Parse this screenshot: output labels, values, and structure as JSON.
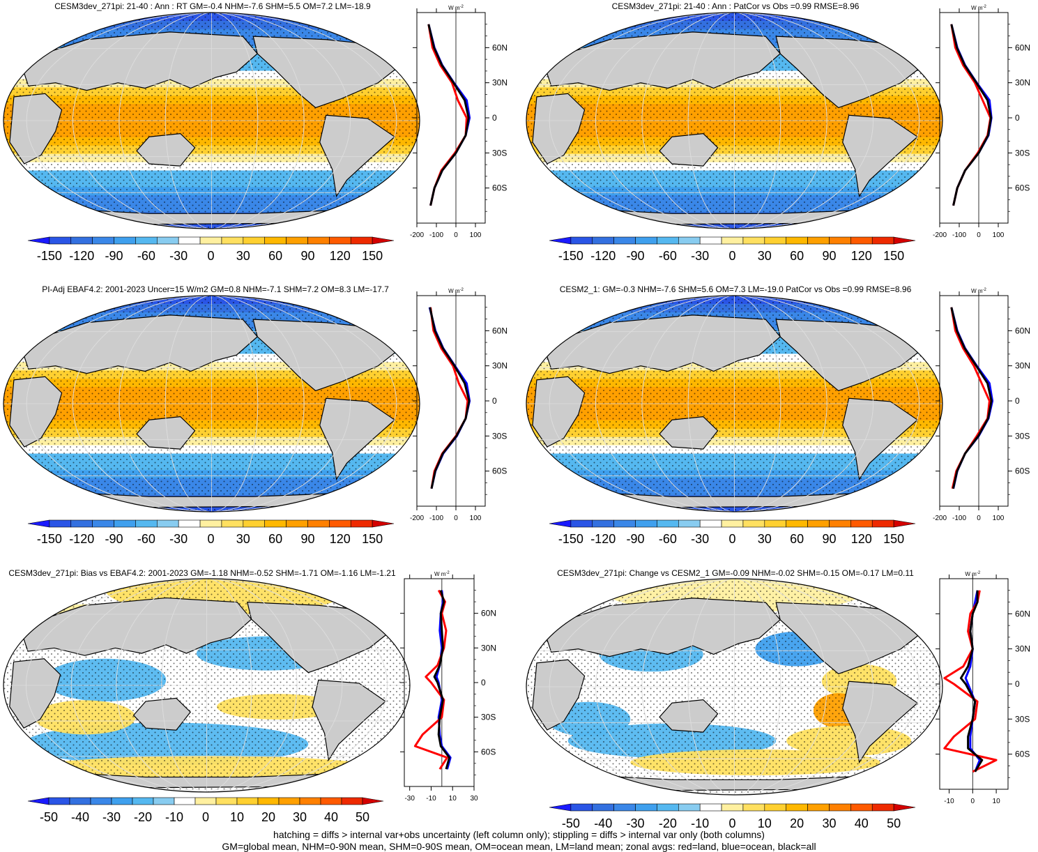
{
  "footer": {
    "line1": "hatching = diffs > internal var+obs uncertainty (left column only); stippling = diffs > internal var only (both columns)",
    "line2": "GM=global mean, NHM=0-90N mean, SHM=0-90S mean, OM=ocean mean, LM=land mean; zonal avgs: red=land, blue=ocean, black=all"
  },
  "colors": {
    "land": "#cccccc",
    "zonal_land": "#ff0000",
    "zonal_ocean": "#0000ff",
    "zonal_all": "#000000",
    "scale_full": [
      "#1a1aff",
      "#2a55e6",
      "#3370e0",
      "#3a87e8",
      "#3fa0ee",
      "#55b8f0",
      "#88ccf0",
      "#ffffff",
      "#fff0a0",
      "#ffe060",
      "#ffd030",
      "#ffb800",
      "#ffa000",
      "#ff8000",
      "#ff5a00",
      "#ee2a00",
      "#d40000"
    ],
    "scale_diff": [
      "#1a1aff",
      "#2a55e6",
      "#3370e0",
      "#3a87e8",
      "#3fa0ee",
      "#55b8f0",
      "#88ccf0",
      "#ffffff",
      "#fff0a0",
      "#ffe060",
      "#ffd030",
      "#ffb800",
      "#ffa000",
      "#ff8000",
      "#ff5a00",
      "#ee2a00",
      "#d40000"
    ]
  },
  "zonal_lat_ticks": [
    "60N",
    "30N",
    "0",
    "30S",
    "60S"
  ],
  "chart_data": [
    {
      "type": "heatmap",
      "title": "CESM3dev_271pi: 21-40 : Ann : RT GM=-0.4 NHM=-7.6 SHM=5.5 OM=7.2 LM=-18.9",
      "units": "W m-2",
      "colorbar_ticks": [
        "-150",
        "-120",
        "-90",
        "-60",
        "-30",
        "0",
        "30",
        "60",
        "90",
        "120",
        "150"
      ],
      "zonal_xticks": [
        "-200",
        "-100",
        "0",
        "100"
      ],
      "zonal_xlim": [
        -200,
        150
      ],
      "lat": [
        80,
        60,
        45,
        30,
        15,
        0,
        -15,
        -30,
        -45,
        -60,
        -75
      ],
      "zonal_land": [
        -140,
        -120,
        -80,
        -20,
        10,
        55,
        50,
        -5,
        -75,
        -110,
        -130
      ],
      "zonal_ocean": [
        -140,
        -110,
        -70,
        -10,
        55,
        70,
        50,
        0,
        -70,
        -110,
        -130
      ],
      "zonal_all": [
        -140,
        -112,
        -72,
        -12,
        45,
        65,
        50,
        0,
        -70,
        -110,
        -130
      ]
    },
    {
      "type": "heatmap",
      "title": "CESM3dev_271pi: 21-40 : Ann : PatCor vs Obs =0.99 RMSE=8.96",
      "units": "W m-2",
      "colorbar_ticks": [
        "-150",
        "-120",
        "-90",
        "-60",
        "-30",
        "0",
        "30",
        "60",
        "90",
        "120",
        "150"
      ],
      "zonal_xticks": [
        "-200",
        "-100",
        "0",
        "100"
      ],
      "zonal_xlim": [
        -200,
        150
      ],
      "lat": [
        80,
        60,
        45,
        30,
        15,
        0,
        -15,
        -30,
        -45,
        -60,
        -75
      ],
      "zonal_land": [
        -140,
        -120,
        -80,
        -20,
        20,
        60,
        45,
        -5,
        -70,
        -110,
        -130
      ],
      "zonal_ocean": [
        -140,
        -110,
        -70,
        -10,
        55,
        65,
        50,
        0,
        -70,
        -110,
        -130
      ],
      "zonal_all": [
        -140,
        -112,
        -72,
        -12,
        45,
        63,
        48,
        0,
        -70,
        -110,
        -130
      ]
    },
    {
      "type": "heatmap",
      "title": "PI-Adj EBAF4.2: 2001-2023 Uncer=15 W/m2 GM=0.8 NHM=-7.1 SHM=7.2 OM=8.3 LM=-17.7",
      "units": "W m-2",
      "colorbar_ticks": [
        "-150",
        "-120",
        "-90",
        "-60",
        "-30",
        "0",
        "30",
        "60",
        "90",
        "120",
        "150"
      ],
      "zonal_xticks": [
        "-200",
        "-100",
        "0",
        "100"
      ],
      "zonal_xlim": [
        -200,
        150
      ],
      "lat": [
        80,
        60,
        45,
        30,
        15,
        0,
        -15,
        -30,
        -45,
        -60,
        -75
      ],
      "zonal_land": [
        -130,
        -115,
        -75,
        -15,
        15,
        60,
        50,
        0,
        -70,
        -110,
        -125
      ],
      "zonal_ocean": [
        -135,
        -105,
        -65,
        -5,
        55,
        70,
        50,
        5,
        -65,
        -105,
        -125
      ],
      "zonal_all": [
        -133,
        -108,
        -67,
        -7,
        45,
        68,
        50,
        3,
        -67,
        -106,
        -125
      ]
    },
    {
      "type": "heatmap",
      "title": "CESM2_1: GM=-0.3 NHM=-7.6 SHM=5.6 OM=7.3 LM=-19.0 PatCor vs Obs =0.99 RMSE=8.96",
      "units": "W m-2",
      "colorbar_ticks": [
        "-150",
        "-120",
        "-90",
        "-60",
        "-30",
        "0",
        "30",
        "60",
        "90",
        "120",
        "150"
      ],
      "zonal_xticks": [
        "-200",
        "-100",
        "0",
        "100"
      ],
      "zonal_xlim": [
        -200,
        150
      ],
      "lat": [
        80,
        60,
        45,
        30,
        15,
        0,
        -15,
        -30,
        -45,
        -60,
        -75
      ],
      "zonal_land": [
        -140,
        -120,
        -80,
        -25,
        15,
        55,
        45,
        -10,
        -70,
        -115,
        -135
      ],
      "zonal_ocean": [
        -140,
        -110,
        -70,
        -10,
        55,
        70,
        50,
        0,
        -70,
        -110,
        -130
      ],
      "zonal_all": [
        -140,
        -112,
        -72,
        -13,
        45,
        65,
        48,
        -2,
        -70,
        -111,
        -131
      ]
    },
    {
      "type": "heatmap",
      "title": "CESM3dev_271pi: Bias vs EBAF4.2: 2001-2023 GM=-1.18 NHM=-0.52 SHM=-1.71 OM=-1.16 LM=-1.21",
      "units": "W m-2",
      "colorbar_ticks": [
        "-50",
        "-40",
        "-30",
        "-20",
        "-10",
        "0",
        "10",
        "20",
        "30",
        "40",
        "50"
      ],
      "zonal_xticks": [
        "-30",
        "-10",
        "10",
        "30"
      ],
      "zonal_xlim": [
        -35,
        30
      ],
      "lat": [
        80,
        70,
        60,
        45,
        30,
        15,
        5,
        0,
        -15,
        -30,
        -45,
        -55,
        -65,
        -75
      ],
      "zonal_land": [
        -3,
        3,
        0,
        4,
        2,
        -4,
        -15,
        -10,
        2,
        0,
        -18,
        -25,
        5,
        -2
      ],
      "zonal_ocean": [
        0,
        1,
        -1,
        -2,
        0,
        -2,
        -5,
        -3,
        0,
        -3,
        -2,
        0,
        8,
        5
      ],
      "zonal_all": [
        -1,
        2,
        -1,
        0,
        1,
        -2,
        -7,
        -4,
        1,
        -2,
        -3,
        -1,
        7,
        4
      ]
    },
    {
      "type": "heatmap",
      "title": "CESM3dev_271pi: Change vs CESM2_1 GM=-0.09 NHM=-0.02 SHM=-0.15 OM=-0.17 LM=0.11",
      "units": "W m-2",
      "colorbar_ticks": [
        "-50",
        "-40",
        "-30",
        "-20",
        "-10",
        "0",
        "10",
        "20",
        "30",
        "40",
        "50"
      ],
      "zonal_xticks": [
        "-10",
        "0",
        "10"
      ],
      "zonal_xlim": [
        -14,
        15
      ],
      "lat": [
        80,
        70,
        60,
        45,
        30,
        15,
        5,
        0,
        -15,
        -30,
        -45,
        -55,
        -65,
        -75
      ],
      "zonal_land": [
        3,
        2,
        -1,
        -2,
        0,
        -4,
        -12,
        -8,
        2,
        1,
        -8,
        -12,
        10,
        0
      ],
      "zonal_ocean": [
        2,
        1,
        0,
        -1,
        0,
        -1,
        -3,
        -2,
        1,
        0,
        -1,
        -1,
        3,
        1
      ],
      "zonal_all": [
        2,
        2,
        0,
        -1,
        0,
        -2,
        -5,
        -3,
        1,
        0,
        -2,
        -2,
        4,
        1
      ]
    }
  ]
}
